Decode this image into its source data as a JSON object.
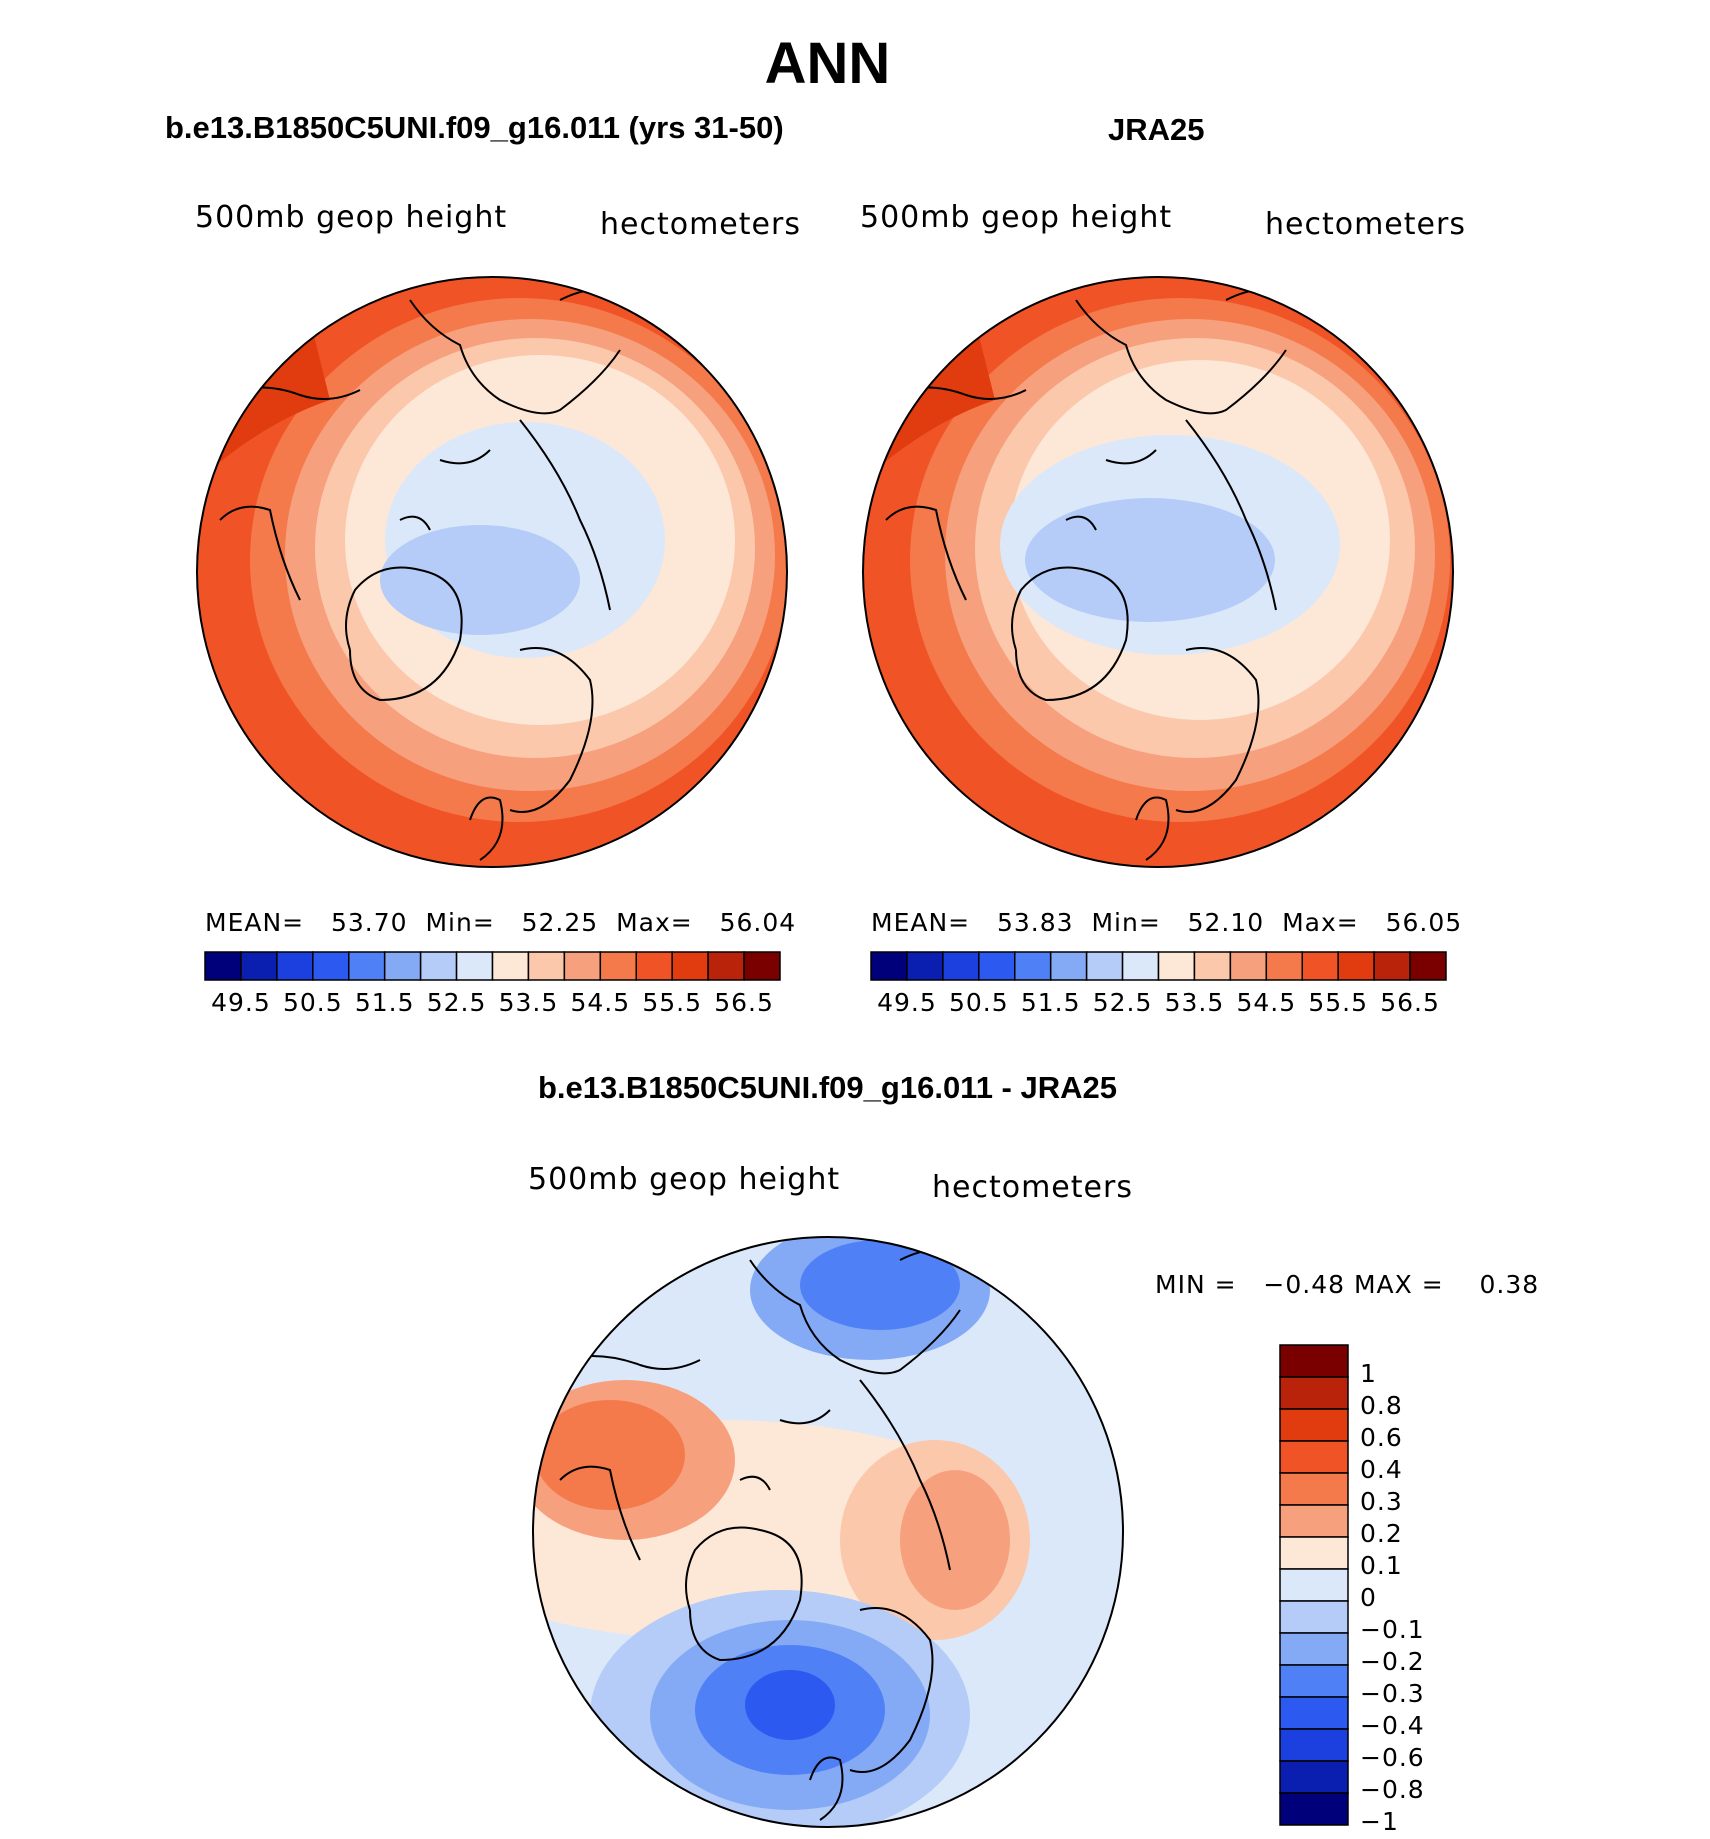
{
  "figure": {
    "main_title": "ANN",
    "panels": [
      {
        "title": "b.e13.B1850C5UNI.f09_g16.011 (yrs 31-50)",
        "variable": "500mb geop height",
        "units": "hectometers",
        "stats": {
          "mean_label": "MEAN=",
          "mean": "53.70",
          "min_label": "Min=",
          "min": "52.25",
          "max_label": "Max=",
          "max": "56.04"
        }
      },
      {
        "title": "JRA25",
        "variable": "500mb geop height",
        "units": "hectometers",
        "stats": {
          "mean_label": "MEAN=",
          "mean": "53.83",
          "min_label": "Min=",
          "min": "52.10",
          "max_label": "Max=",
          "max": "56.05"
        }
      }
    ],
    "difference": {
      "title": "b.e13.B1850C5UNI.f09_g16.011 - JRA25",
      "variable": "500mb geop height",
      "units": "hectometers",
      "min_label": "MIN =",
      "min": "−0.48",
      "max_label": "MAX =",
      "max": "0.38"
    }
  },
  "chart_data": [
    {
      "type": "heatmap",
      "projection": "north-polar-stereographic",
      "title": "b.e13.B1850C5UNI.f09_g16.011 (yrs 31-50)",
      "variable": "500mb geop height",
      "units": "hectometers",
      "mean": 53.7,
      "min": 52.25,
      "max": 56.04,
      "contour_levels": [
        49.5,
        50.0,
        50.5,
        51.0,
        51.5,
        52.0,
        52.5,
        53.0,
        53.5,
        54.0,
        54.5,
        55.0,
        55.5,
        56.0,
        56.5
      ],
      "colorbar_tick_labels": [
        "49.5",
        "50.5",
        "51.5",
        "52.5",
        "53.5",
        "54.5",
        "55.5",
        "56.5"
      ]
    },
    {
      "type": "heatmap",
      "projection": "north-polar-stereographic",
      "title": "JRA25",
      "variable": "500mb geop height",
      "units": "hectometers",
      "mean": 53.83,
      "min": 52.1,
      "max": 56.05,
      "contour_levels": [
        49.5,
        50.0,
        50.5,
        51.0,
        51.5,
        52.0,
        52.5,
        53.0,
        53.5,
        54.0,
        54.5,
        55.0,
        55.5,
        56.0,
        56.5
      ],
      "colorbar_tick_labels": [
        "49.5",
        "50.5",
        "51.5",
        "52.5",
        "53.5",
        "54.5",
        "55.5",
        "56.5"
      ]
    },
    {
      "type": "heatmap",
      "projection": "north-polar-stereographic",
      "title": "b.e13.B1850C5UNI.f09_g16.011 - JRA25",
      "variable": "500mb geop height",
      "units": "hectometers",
      "min": -0.48,
      "max": 0.38,
      "contour_levels": [
        -1,
        -0.8,
        -0.6,
        -0.4,
        -0.3,
        -0.2,
        -0.1,
        0,
        0.1,
        0.2,
        0.3,
        0.4,
        0.6,
        0.8,
        1
      ],
      "colorbar_tick_labels": [
        "1",
        "0.8",
        "0.6",
        "0.4",
        "0.3",
        "0.2",
        "0.1",
        "0",
        "−0.1",
        "−0.2",
        "−0.3",
        "−0.4",
        "−0.6",
        "−0.8",
        "−1"
      ]
    }
  ],
  "colors": {
    "abs_scale": [
      "#00007a",
      "#0a1fb0",
      "#1c3fe0",
      "#2c5af0",
      "#4f80f5",
      "#85aaf5",
      "#b4ccf7",
      "#dbe8fa",
      "#fde7d7",
      "#fbc8ac",
      "#f7a07d",
      "#f47a4b",
      "#f05426",
      "#e03c10",
      "#b8230a",
      "#7a0000"
    ],
    "diff_scale": [
      "#7a0000",
      "#b8230a",
      "#e03c10",
      "#f05426",
      "#f47a4b",
      "#f7a07d",
      "#fde7d7",
      "#dbe8fa",
      "#b4ccf7",
      "#85aaf5",
      "#4f80f5",
      "#2c5af0",
      "#1c3fe0",
      "#0a1fb0",
      "#00007a"
    ]
  }
}
